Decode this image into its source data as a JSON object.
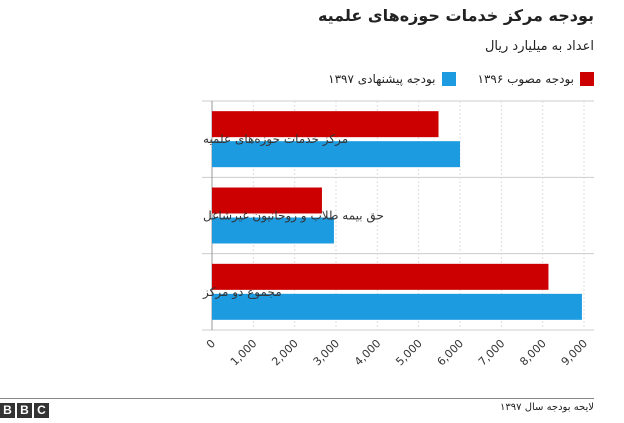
{
  "chart_data": {
    "type": "bar",
    "orientation": "horizontal",
    "title": "بودجه مرکز خدمات حوزه‌های علمیه",
    "subtitle": "اعداد به میلیارد ریال",
    "categories": [
      "مرکز خدمات حوزه‌های علمیه",
      "حق بیمه طلاب و روحانیون غیرشاغل",
      "مجموع دو مرکز"
    ],
    "series": [
      {
        "name": "بودجه مصوب ۱۳۹۶",
        "color": "#cc0000",
        "values": [
          5480,
          2660,
          8140
        ]
      },
      {
        "name": "بودجه پیشنهادی ۱۳۹۷",
        "color": "#1d9be0",
        "values": [
          6000,
          2950,
          8950
        ]
      }
    ],
    "xlim": [
      0,
      9000
    ],
    "ticks": [
      "0",
      "1,000",
      "2,000",
      "3,000",
      "4,000",
      "5,000",
      "6,000",
      "7,000",
      "8,000",
      "9,000"
    ],
    "legend_position": "top-right",
    "grid": true
  },
  "source": "لایحه بودجه سال ۱۳۹۷",
  "logo": "BBC"
}
